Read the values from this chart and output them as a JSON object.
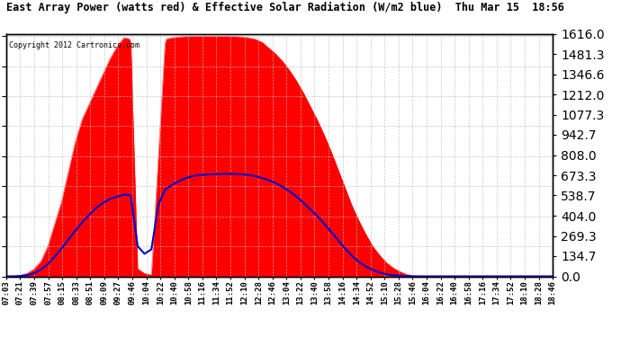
{
  "title": "East Array Power (watts red) & Effective Solar Radiation (W/m2 blue)  Thu Mar 15  18:56",
  "copyright": "Copyright 2012 Cartronics.com",
  "background_color": "#ffffff",
  "plot_bg_color": "#ffffff",
  "grid_color": "#bbbbbb",
  "red_color": "#ff0000",
  "blue_color": "#0000cc",
  "ymin": 0.0,
  "ymax": 1616.0,
  "yticks": [
    0.0,
    134.7,
    269.3,
    404.0,
    538.7,
    673.3,
    808.0,
    942.7,
    1077.3,
    1212.0,
    1346.6,
    1481.3,
    1616.0
  ],
  "xtick_labels": [
    "07:03",
    "07:21",
    "07:39",
    "07:57",
    "08:15",
    "08:33",
    "08:51",
    "09:09",
    "09:27",
    "09:46",
    "10:04",
    "10:22",
    "10:40",
    "10:58",
    "11:16",
    "11:34",
    "11:52",
    "12:10",
    "12:28",
    "12:46",
    "13:04",
    "13:22",
    "13:40",
    "13:58",
    "14:16",
    "14:34",
    "14:52",
    "15:10",
    "15:28",
    "15:46",
    "16:04",
    "16:22",
    "16:40",
    "16:58",
    "17:16",
    "17:34",
    "17:52",
    "18:10",
    "18:28",
    "18:46"
  ],
  "red_data": [
    0,
    0,
    5,
    20,
    50,
    100,
    200,
    350,
    500,
    700,
    900,
    1050,
    1150,
    1250,
    1350,
    1450,
    1530,
    1590,
    1580,
    50,
    20,
    10,
    800,
    1580,
    1590,
    1595,
    1598,
    1600,
    1600,
    1600,
    1600,
    1600,
    1600,
    1598,
    1595,
    1590,
    1580,
    1560,
    1520,
    1480,
    1430,
    1370,
    1300,
    1220,
    1130,
    1040,
    940,
    830,
    710,
    590,
    470,
    370,
    280,
    200,
    140,
    90,
    55,
    30,
    12,
    3,
    0,
    0,
    0,
    0,
    0,
    0,
    0,
    0,
    0,
    0,
    0,
    0,
    0,
    0,
    0,
    0,
    0,
    0,
    0,
    0
  ],
  "blue_data": [
    0,
    0,
    2,
    8,
    20,
    45,
    80,
    130,
    185,
    245,
    305,
    360,
    410,
    455,
    490,
    515,
    530,
    545,
    540,
    200,
    150,
    180,
    480,
    580,
    610,
    635,
    655,
    668,
    675,
    678,
    680,
    682,
    683,
    682,
    680,
    675,
    668,
    655,
    640,
    620,
    595,
    565,
    530,
    490,
    445,
    400,
    350,
    295,
    240,
    185,
    135,
    95,
    65,
    42,
    25,
    14,
    7,
    3,
    1,
    0,
    0,
    0,
    0,
    0,
    0,
    0,
    0,
    0,
    0,
    0,
    0,
    0,
    0,
    0,
    0,
    0,
    0,
    0,
    0,
    0
  ],
  "n_points": 80
}
